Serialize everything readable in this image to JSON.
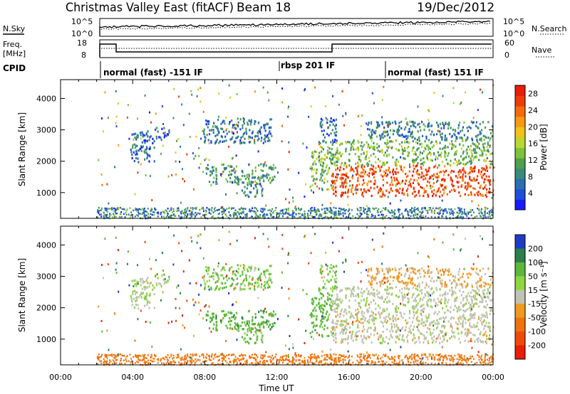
{
  "header": {
    "station": "Christmas Valley East (fitACF)",
    "beam": "Beam 18",
    "date": "19/Dec/2012"
  },
  "noise_panel": {
    "left_label": "N.Sky",
    "right_label": "N.Search",
    "ticks": [
      "10^5",
      "10^0"
    ]
  },
  "freq_panel": {
    "left_label_1": "Freq.",
    "left_label_2": "[MHz]",
    "left_ticks": [
      "18",
      "8"
    ],
    "right_label": "Nave",
    "right_ticks": [
      "60",
      "0"
    ]
  },
  "cpid": {
    "label": "CPID",
    "modes": [
      {
        "name": "normal (fast) -151 IF",
        "start": 2.0
      },
      {
        "name": "rbsp 201 IF",
        "start": 12.0
      },
      {
        "name": "normal (fast) 151 IF",
        "start": 18.0
      }
    ]
  },
  "chart_data": [
    {
      "type": "heatmap",
      "ylabel": "Slant Range [km]",
      "yticks": [
        1000,
        2000,
        3000,
        4000
      ],
      "ylim": [
        180,
        4600
      ],
      "xlim": [
        0,
        24
      ],
      "colorbar": {
        "label": "Power [dB]",
        "ticks": [
          4,
          8,
          12,
          16,
          20,
          24,
          28
        ],
        "range": [
          0,
          30
        ],
        "colors": [
          "#1a1aff",
          "#1e4fd6",
          "#2a6fb0",
          "#3a8a7a",
          "#4f9f4f",
          "#7cc23a",
          "#b8d830",
          "#f2c21b",
          "#f59a12",
          "#f46b0d",
          "#ef3a0a",
          "#e81e07"
        ]
      },
      "echo_regions": [
        {
          "t0": 3.8,
          "t1": 5.2,
          "r0": 2000,
          "r1": 3000,
          "power": 6,
          "velocity": 10
        },
        {
          "t0": 5.2,
          "t1": 6.0,
          "r0": 2700,
          "r1": 3100,
          "power": 5,
          "velocity": 20
        },
        {
          "t0": 7.9,
          "t1": 11.7,
          "r0": 2600,
          "r1": 3400,
          "power": 7,
          "velocity": 30
        },
        {
          "t0": 7.9,
          "t1": 11.9,
          "r0": 1300,
          "r1": 1950,
          "power": 10,
          "velocity": 60
        },
        {
          "t0": 10.0,
          "t1": 11.2,
          "r0": 900,
          "r1": 1300,
          "power": 8,
          "velocity": 40
        },
        {
          "t0": 13.8,
          "t1": 15.1,
          "r0": 1100,
          "r1": 2500,
          "power": 14,
          "velocity": 45
        },
        {
          "t0": 14.3,
          "t1": 15.3,
          "r0": 2600,
          "r1": 3400,
          "power": 6,
          "velocity": 30
        },
        {
          "t0": 15.0,
          "t1": 24.0,
          "r0": 900,
          "r1": 1900,
          "power": 26,
          "velocity": 0
        },
        {
          "t0": 15.0,
          "t1": 24.0,
          "r0": 1900,
          "r1": 2700,
          "power": 13,
          "velocity": 5
        },
        {
          "t0": 17.0,
          "t1": 24.0,
          "r0": 2700,
          "r1": 3300,
          "power": 8,
          "velocity": -20
        }
      ]
    },
    {
      "type": "heatmap",
      "ylabel": "Slant Range [km]",
      "xlabel": "Time UT",
      "xticks": [
        "00:00",
        "04:00",
        "08:00",
        "12:00",
        "16:00",
        "20:00",
        "00:00"
      ],
      "yticks": [
        1000,
        2000,
        3000,
        4000
      ],
      "ylim": [
        180,
        4600
      ],
      "xlim": [
        0,
        24
      ],
      "colorbar": {
        "label": "Velocity [m s⁻¹]",
        "ticks": [
          200,
          100,
          50,
          15,
          -15,
          -50,
          -100,
          -200
        ],
        "colors": [
          "#1f3cc4",
          "#2a7f4a",
          "#5cb83a",
          "#8ed640",
          "#c2c2b4",
          "#f09a20",
          "#f0720f",
          "#f04a0a",
          "#e81e07"
        ]
      }
    }
  ]
}
